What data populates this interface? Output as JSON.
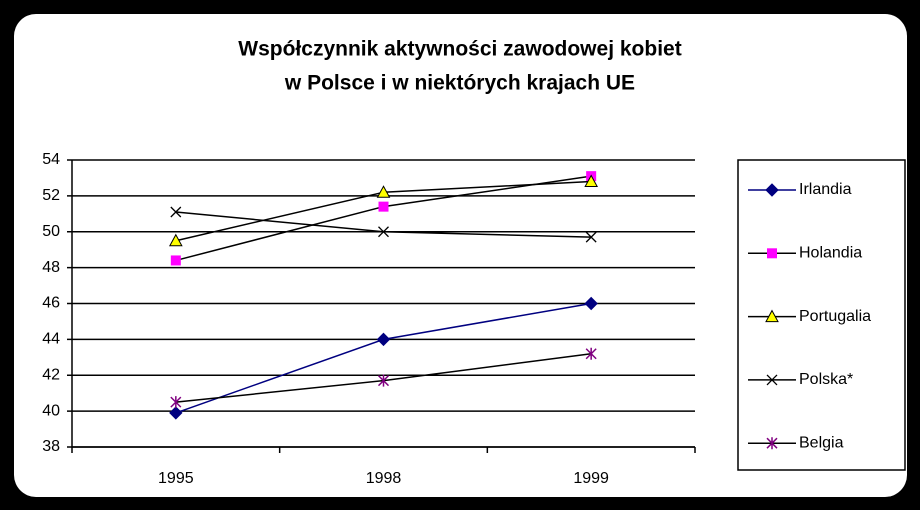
{
  "chart_data": {
    "type": "line",
    "title": [
      "Współczynnik aktywności zawodowej kobiet",
      "w Polsce i w niektórych krajach UE"
    ],
    "categories": [
      "1995",
      "1998",
      "1999"
    ],
    "series": [
      {
        "name": "Irlandia",
        "color": "#000080",
        "line_color": "#000080",
        "marker": "diamond",
        "values": [
          39.9,
          44.0,
          46.0
        ]
      },
      {
        "name": "Holandia",
        "color": "#ff00ff",
        "line_color": "#000000",
        "marker": "square",
        "values": [
          48.4,
          51.4,
          53.1
        ]
      },
      {
        "name": "Portugalia",
        "color": "#ffff00",
        "line_color": "#000000",
        "marker": "triangle",
        "values": [
          49.5,
          52.2,
          52.8
        ]
      },
      {
        "name": "Polska*",
        "color": "#000000",
        "line_color": "#000000",
        "marker": "x",
        "values": [
          51.1,
          50.0,
          49.7
        ]
      },
      {
        "name": "Belgia",
        "color": "#800080",
        "line_color": "#000000",
        "marker": "asterisk",
        "values": [
          40.5,
          41.7,
          43.2
        ]
      }
    ],
    "ylim": [
      38,
      54
    ],
    "yticks": [
      38,
      40,
      42,
      44,
      46,
      48,
      50,
      52,
      54
    ],
    "grid": true,
    "legend": "right"
  }
}
